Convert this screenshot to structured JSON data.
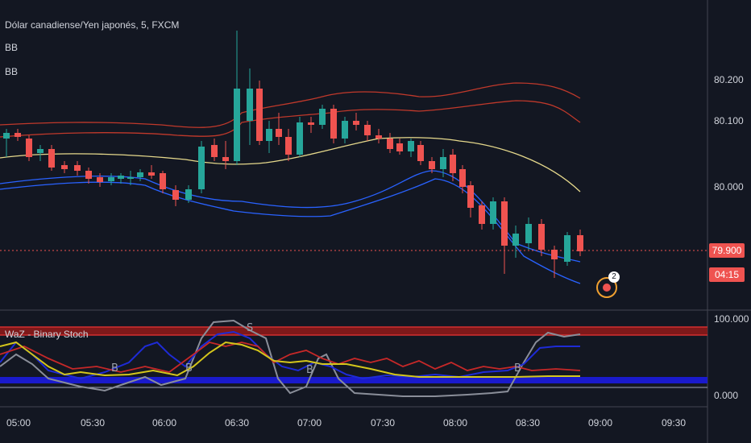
{
  "header": {
    "symbol_title": "Dólar canadiense/Yen japonés, 5, FXCM",
    "indicators": [
      "BB",
      "BB"
    ]
  },
  "price_axis": {
    "ticks": [
      "80.200",
      "80.100",
      "80.000"
    ],
    "current_price": "79.900",
    "countdown": "04:15"
  },
  "oscillator": {
    "title": "WaZ - Binary Stoch",
    "ticks": [
      "100.000",
      "0.000"
    ],
    "markers": [
      "B",
      "B",
      "S",
      "B",
      "B"
    ]
  },
  "time_axis": {
    "labels": [
      "05:00",
      "05:30",
      "06:00",
      "06:30",
      "07:00",
      "07:30",
      "08:00",
      "08:30",
      "09:00",
      "09:30"
    ]
  },
  "alert_badge": {
    "count": "2"
  },
  "colors": {
    "background": "#131722",
    "up_candle": "#26a69a",
    "down_candle": "#ef5350",
    "bb_upper": "#c0392b",
    "bb_middle": "#e6d98c",
    "bb_lower": "#2962ff",
    "price_line": "#ef5350"
  }
}
